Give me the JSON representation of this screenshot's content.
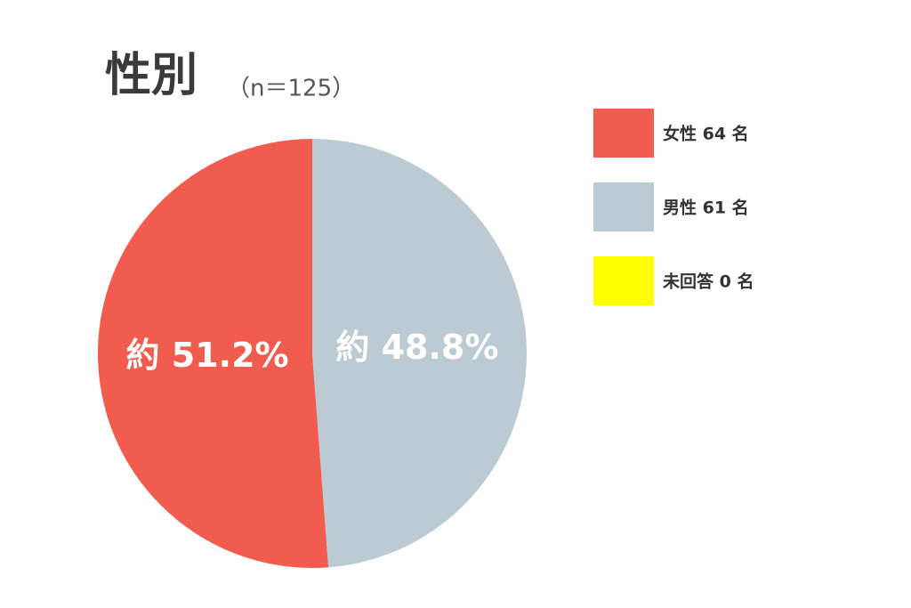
{
  "chart_data": {
    "type": "pie",
    "title": "性別",
    "subtitle": "（n＝125）",
    "categories": [
      "女性 64 名",
      "男性 61 名",
      "未回答 0 名"
    ],
    "values": [
      51.2,
      48.8,
      0
    ],
    "value_labels": [
      "約 51.2%",
      "約 48.8%",
      null
    ],
    "colors": [
      "#f25c4f",
      "#bccad3",
      "#ffff00"
    ]
  }
}
